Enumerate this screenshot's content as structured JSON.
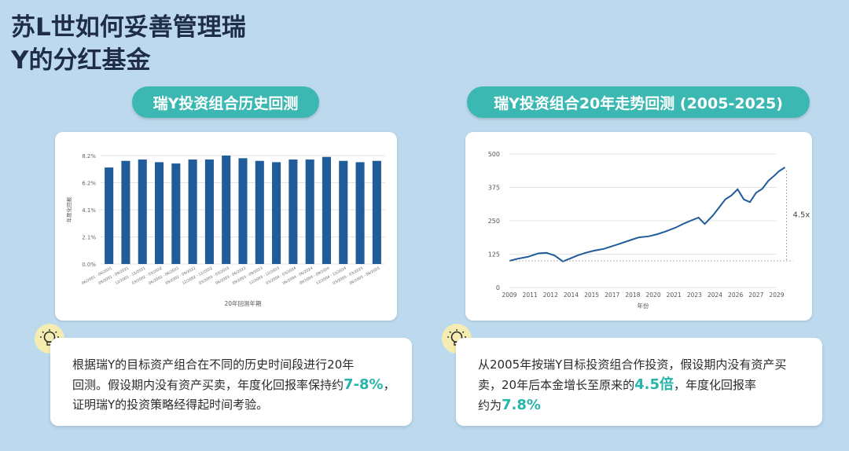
{
  "title_line1": "苏L世如何妥善管理瑞",
  "title_line2": "Y的分红基金",
  "left_pill": "瑞Y投资组合历史回测",
  "right_pill": "瑞Y投资组合20年走势回测 (2005-2025)",
  "left_note": {
    "text1": "根据瑞Y的目标资产组合在不同的历史时间段进行20年",
    "text2": "回测。假设期内没有资产买卖，年度化回报率保持约",
    "highlight": "7-8%",
    "text3": "证明瑞Y的投资策略经得起时间考验。"
  },
  "right_note": {
    "text1": "从2005年按瑞Y目标投资组合作投资，假设期内没有资产买",
    "text2": "卖，20年后本金增长至原来的",
    "highlight1": "4.5倍",
    "text3": "，年度化回报率",
    "text4": "约为",
    "highlight2": "7.8%"
  },
  "icons": {
    "bulb": "lightbulb-icon"
  },
  "colors": {
    "bar": "#1f5c99",
    "line": "#1f5c99",
    "accent": "#3cb8b3"
  },
  "chart_data": [
    {
      "type": "bar",
      "title": "",
      "xlabel": "20年回测年期",
      "ylabel": "年度化回报",
      "ylim": [
        0,
        8.2
      ],
      "yticks": [
        "0.0%",
        "2.1%",
        "4.1%",
        "6.2%",
        "8.2%"
      ],
      "categories": [
        "06/2001 - 06/2021",
        "09/2001 - 09/2021",
        "12/2001 - 12/2021",
        "03/2002 - 03/2022",
        "06/2002 - 06/2022",
        "09/2002 - 09/2022",
        "12/2002 - 12/2022",
        "03/2003 - 03/2023",
        "06/2003 - 06/2023",
        "09/2003 - 09/2023",
        "12/2003 - 12/2023",
        "03/2004 - 03/2024",
        "06/2004 - 06/2024",
        "09/2004 - 09/2024",
        "12/2004 - 12/2024",
        "03/2005 - 03/2025",
        "06/2005 - 06/2025"
      ],
      "values": [
        7.3,
        7.8,
        7.9,
        7.7,
        7.6,
        7.9,
        7.9,
        8.2,
        8.0,
        7.8,
        7.7,
        7.9,
        7.9,
        8.1,
        7.8,
        7.7,
        7.8
      ]
    },
    {
      "type": "line",
      "title": "",
      "xlabel": "年份",
      "ylabel": "",
      "ylim": [
        0,
        500
      ],
      "yticks": [
        "0",
        "125",
        "250",
        "375",
        "500"
      ],
      "xticks": [
        "2009",
        "2011",
        "2012",
        "2014",
        "2015",
        "2017",
        "2018",
        "2020",
        "2021",
        "2023",
        "2024",
        "2026",
        "2027",
        "2029"
      ],
      "annotation": "4.5x",
      "x": [
        0,
        0.4,
        0.9,
        1.4,
        1.8,
        2.2,
        2.6,
        3.0,
        3.3,
        3.7,
        4.1,
        4.6,
        5.0,
        5.4,
        5.9,
        6.3,
        6.8,
        7.2,
        7.6,
        8.1,
        8.5,
        8.8,
        9.2,
        9.5,
        9.9,
        10.2,
        10.5,
        10.8,
        11.1,
        11.4,
        11.7,
        12.0,
        12.3,
        12.6,
        12.9,
        13.1,
        13.4
      ],
      "values": [
        100,
        108,
        115,
        128,
        130,
        120,
        98,
        110,
        120,
        130,
        138,
        145,
        155,
        165,
        178,
        188,
        192,
        200,
        210,
        225,
        240,
        250,
        262,
        238,
        270,
        300,
        330,
        345,
        368,
        330,
        320,
        355,
        370,
        400,
        420,
        435,
        450
      ]
    }
  ]
}
